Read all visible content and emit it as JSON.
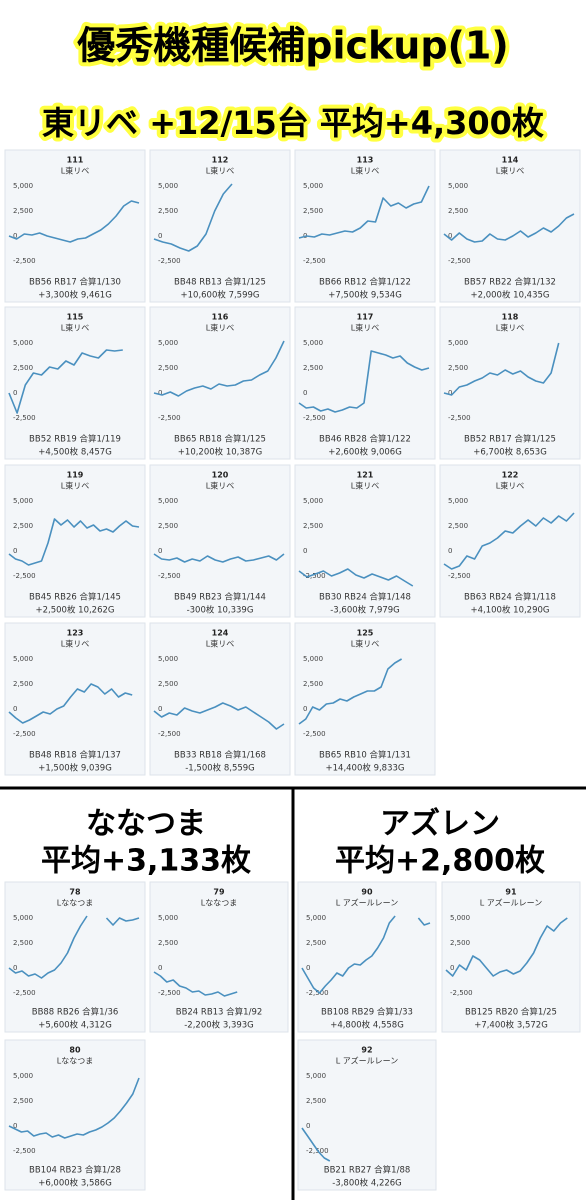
{
  "header": {
    "title": "優秀機種候補pickup(1)",
    "subtitle": "東リベ +12/15台 平均+4,300枚"
  },
  "sections": [
    {
      "title": "ななつま",
      "subtitle": "平均+3,133枚"
    },
    {
      "title": "アズレン",
      "subtitle": "平均+2,800枚"
    }
  ],
  "chart_data": [
    {
      "type": "line",
      "title": "111",
      "subtitle": "L東リベ",
      "annotations": [
        "BB56 RB17 合算1/130",
        "+3,300枚 9,461G"
      ],
      "values": [
        0,
        -300,
        200,
        100,
        300,
        0,
        -200,
        -400,
        -600,
        -300,
        -200,
        200,
        600,
        1200,
        2000,
        3000,
        3500,
        3300
      ],
      "ylim": [
        -3500,
        5800
      ],
      "yticks": [
        {
          "value": 5000,
          "label": "5,000"
        },
        {
          "value": 2500,
          "label": "2,500"
        },
        0,
        {
          "value": -2500,
          "label": "-2,500"
        }
      ],
      "color": "#4a90bf"
    },
    {
      "type": "line",
      "title": "112",
      "subtitle": "L東リベ",
      "annotations": [
        "BB48 RB13 合算1/125",
        "+10,600枚 7,599G"
      ],
      "values": [
        -300,
        -600,
        -800,
        -1200,
        -1500,
        -1000,
        200,
        2500,
        4200,
        5200,
        null,
        null,
        null,
        null,
        null,
        null
      ],
      "ylim": [
        -3500,
        5800
      ],
      "yticks": [
        {
          "value": 5000,
          "label": "5,000"
        },
        {
          "value": 2500,
          "label": "2,500"
        },
        0,
        {
          "value": -2500,
          "label": "-2,500"
        }
      ],
      "color": "#4a90bf"
    },
    {
      "type": "line",
      "title": "113",
      "subtitle": "L東リベ",
      "annotations": [
        "BB66 RB12 合算1/122",
        "+7,500枚 9,534G"
      ],
      "values": [
        -200,
        0,
        -100,
        200,
        100,
        300,
        500,
        400,
        800,
        1500,
        1400,
        3800,
        3000,
        3300,
        2800,
        3200,
        3400,
        5000
      ],
      "ylim": [
        -3500,
        5800
      ],
      "yticks": [
        {
          "value": 5000,
          "label": "5,000"
        },
        {
          "value": 2500,
          "label": "2,500"
        },
        0,
        {
          "value": -2500,
          "label": "-2,500"
        }
      ],
      "color": "#4a90bf"
    },
    {
      "type": "line",
      "title": "114",
      "subtitle": "L東リベ",
      "annotations": [
        "BB57 RB22 合算1/132",
        "+2,000枚 10,435G"
      ],
      "values": [
        200,
        -400,
        300,
        -300,
        -600,
        -500,
        200,
        -300,
        -400,
        0,
        500,
        -100,
        300,
        800,
        400,
        1000,
        1800,
        2200
      ],
      "ylim": [
        -3500,
        5800
      ],
      "yticks": [
        {
          "value": 5000,
          "label": "5,000"
        },
        {
          "value": 2500,
          "label": "2,500"
        },
        0,
        {
          "value": -2500,
          "label": "-2,500"
        }
      ],
      "color": "#4a90bf"
    },
    {
      "type": "line",
      "title": "115",
      "subtitle": "L東リベ",
      "annotations": [
        "BB52 RB19 合算1/119",
        "+4,500枚 8,457G"
      ],
      "values": [
        0,
        -2000,
        800,
        2000,
        1800,
        2600,
        2400,
        3200,
        2800,
        4000,
        3700,
        3500,
        4300,
        4200,
        4300,
        null,
        null
      ],
      "ylim": [
        -3500,
        5800
      ],
      "yticks": [
        {
          "value": 5000,
          "label": "5,000"
        },
        {
          "value": 2500,
          "label": "2,500"
        },
        0,
        {
          "value": -2500,
          "label": "-2,500"
        }
      ],
      "color": "#4a90bf"
    },
    {
      "type": "line",
      "title": "116",
      "subtitle": "L東リベ",
      "annotations": [
        "BB65 RB18 合算1/125",
        "+10,200枚 10,387G"
      ],
      "values": [
        0,
        -200,
        100,
        -300,
        200,
        500,
        700,
        400,
        900,
        700,
        800,
        1200,
        1300,
        1800,
        2200,
        3500,
        5200
      ],
      "ylim": [
        -3500,
        5800
      ],
      "yticks": [
        {
          "value": 5000,
          "label": "5,000"
        },
        {
          "value": 2500,
          "label": "2,500"
        },
        0,
        {
          "value": -2500,
          "label": "-2,500"
        }
      ],
      "color": "#4a90bf"
    },
    {
      "type": "line",
      "title": "117",
      "subtitle": "L東リベ",
      "annotations": [
        "BB46 RB28 合算1/122",
        "+2,600枚 9,006G"
      ],
      "values": [
        -1000,
        -1500,
        -1400,
        -1800,
        -1600,
        -1900,
        -1700,
        -1400,
        -1500,
        -1000,
        4200,
        4000,
        3800,
        3500,
        3700,
        3000,
        2600,
        2300,
        2500
      ],
      "ylim": [
        -3500,
        5800
      ],
      "yticks": [
        {
          "value": 5000,
          "label": "5,000"
        },
        {
          "value": 2500,
          "label": "2,500"
        },
        0,
        {
          "value": -2500,
          "label": "-2,500"
        }
      ],
      "color": "#4a90bf"
    },
    {
      "type": "line",
      "title": "118",
      "subtitle": "L東リベ",
      "annotations": [
        "BB52 RB17 合算1/125",
        "+6,700枚 8,653G"
      ],
      "values": [
        0,
        -200,
        600,
        800,
        1200,
        1500,
        2000,
        1800,
        2300,
        1900,
        2200,
        1600,
        1200,
        1000,
        2000,
        5000,
        null,
        null
      ],
      "ylim": [
        -3500,
        5800
      ],
      "yticks": [
        {
          "value": 5000,
          "label": "5,000"
        },
        {
          "value": 2500,
          "label": "2,500"
        },
        0,
        {
          "value": -2500,
          "label": "-2,500"
        }
      ],
      "color": "#4a90bf"
    },
    {
      "type": "line",
      "title": "119",
      "subtitle": "L東リベ",
      "annotations": [
        "BB45 RB26 合算1/145",
        "+2,500枚 10,262G"
      ],
      "values": [
        -300,
        -800,
        -1000,
        -1400,
        -1200,
        -1000,
        800,
        3200,
        2600,
        3100,
        2400,
        3000,
        2300,
        2600,
        2000,
        2200,
        1900,
        2500,
        3000,
        2500,
        2400
      ],
      "ylim": [
        -3500,
        5800
      ],
      "yticks": [
        {
          "value": 5000,
          "label": "5,000"
        },
        {
          "value": 2500,
          "label": "2,500"
        },
        0,
        {
          "value": -2500,
          "label": "-2,500"
        }
      ],
      "color": "#4a90bf"
    },
    {
      "type": "line",
      "title": "120",
      "subtitle": "L東リベ",
      "annotations": [
        "BB49 RB23 合算1/144",
        "-300枚 10,339G"
      ],
      "values": [
        -300,
        -800,
        -900,
        -700,
        -1100,
        -800,
        -1000,
        -500,
        -900,
        -1100,
        -800,
        -600,
        -1000,
        -900,
        -700,
        -500,
        -900,
        -300
      ],
      "ylim": [
        -3500,
        5800
      ],
      "yticks": [
        {
          "value": 5000,
          "label": "5,000"
        },
        {
          "value": 2500,
          "label": "2,500"
        },
        0,
        {
          "value": -2500,
          "label": "-2,500"
        }
      ],
      "color": "#4a90bf"
    },
    {
      "type": "line",
      "title": "121",
      "subtitle": "L東リベ",
      "annotations": [
        "BB30 RB24 合算1/148",
        "-3,600枚 7,979G"
      ],
      "values": [
        -2000,
        -2600,
        -2300,
        -2000,
        -2500,
        -2200,
        -1800,
        -2400,
        -2700,
        -2300,
        -2600,
        -2900,
        -2500,
        -3000,
        -3500,
        null,
        null
      ],
      "ylim": [
        -3500,
        5800
      ],
      "yticks": [
        {
          "value": 5000,
          "label": "5,000"
        },
        {
          "value": 2500,
          "label": "2,500"
        },
        0,
        {
          "value": -2500,
          "label": "-2,500"
        }
      ],
      "color": "#4a90bf"
    },
    {
      "type": "line",
      "title": "122",
      "subtitle": "L東リベ",
      "annotations": [
        "BB63 RB24 合算1/118",
        "+4,100枚 10,290G"
      ],
      "values": [
        -1300,
        -1800,
        -1500,
        -500,
        -800,
        500,
        800,
        1300,
        2000,
        1800,
        2500,
        3100,
        2500,
        3300,
        2800,
        3500,
        3000,
        3800
      ],
      "ylim": [
        -3500,
        5800
      ],
      "yticks": [
        {
          "value": 5000,
          "label": "5,000"
        },
        {
          "value": 2500,
          "label": "2,500"
        },
        0,
        {
          "value": -2500,
          "label": "-2,500"
        }
      ],
      "color": "#4a90bf"
    },
    {
      "type": "line",
      "title": "123",
      "subtitle": "L東リベ",
      "annotations": [
        "BB48 RB18 合算1/137",
        "+1,500枚 9,039G"
      ],
      "values": [
        -300,
        -900,
        -1400,
        -1100,
        -700,
        -300,
        -500,
        0,
        300,
        1200,
        2000,
        1700,
        2500,
        2200,
        1500,
        2000,
        1200,
        1600,
        1400,
        null
      ],
      "ylim": [
        -3500,
        5800
      ],
      "yticks": [
        {
          "value": 5000,
          "label": "5,000"
        },
        {
          "value": 2500,
          "label": "2,500"
        },
        0,
        {
          "value": -2500,
          "label": "-2,500"
        }
      ],
      "color": "#4a90bf"
    },
    {
      "type": "line",
      "title": "124",
      "subtitle": "L東リベ",
      "annotations": [
        "BB33 RB18 合算1/168",
        "-1,500枚 8,559G"
      ],
      "values": [
        -200,
        -800,
        -400,
        -600,
        100,
        -200,
        -400,
        -100,
        200,
        600,
        300,
        -100,
        200,
        -300,
        -800,
        -1300,
        -2000,
        -1500
      ],
      "ylim": [
        -3500,
        5800
      ],
      "yticks": [
        {
          "value": 5000,
          "label": "5,000"
        },
        {
          "value": 2500,
          "label": "2,500"
        },
        0,
        {
          "value": -2500,
          "label": "-2,500"
        }
      ],
      "color": "#4a90bf"
    },
    {
      "type": "line",
      "title": "125",
      "subtitle": "L東リベ",
      "annotations": [
        "BB65 RB10 合算1/131",
        "+14,400枚 9,833G"
      ],
      "values": [
        -1500,
        -1000,
        200,
        -100,
        500,
        600,
        1000,
        800,
        1200,
        1500,
        1800,
        1800,
        2200,
        4000,
        4600,
        5000,
        null,
        null,
        null,
        null
      ],
      "ylim": [
        -3500,
        5800
      ],
      "yticks": [
        {
          "value": 5000,
          "label": "5,000"
        },
        {
          "value": 2500,
          "label": "2,500"
        },
        0,
        {
          "value": -2500,
          "label": "-2,500"
        }
      ],
      "color": "#4a90bf"
    },
    {
      "type": "line",
      "title": "78",
      "subtitle": "Lななつま",
      "annotations": [
        "BB88 RB26 合算1/36",
        "+5,600枚 4,312G"
      ],
      "values": [
        0,
        -500,
        -300,
        -800,
        -600,
        -1000,
        -500,
        -200,
        500,
        1500,
        3000,
        4200,
        5200,
        null,
        null,
        5000,
        4300,
        5000,
        4700,
        4800,
        5000
      ],
      "ylim": [
        -3500,
        5800
      ],
      "yticks": [
        {
          "value": 5000,
          "label": "5,000"
        },
        {
          "value": 2500,
          "label": "2,500"
        },
        0,
        {
          "value": -2500,
          "label": "-2,500"
        }
      ],
      "color": "#4a90bf"
    },
    {
      "type": "line",
      "title": "79",
      "subtitle": "Lななつま",
      "annotations": [
        "BB24 RB13 合算1/92",
        "-2,200枚 3,393G"
      ],
      "values": [
        -400,
        -800,
        -1400,
        -1200,
        -1800,
        -2000,
        -2400,
        -2300,
        -2700,
        -2600,
        -2400,
        -2800,
        -2600,
        -2400,
        null,
        null,
        null,
        null,
        null,
        null,
        null
      ],
      "ylim": [
        -3500,
        5800
      ],
      "yticks": [
        {
          "value": 5000,
          "label": "5,000"
        },
        {
          "value": 2500,
          "label": "2,500"
        },
        0,
        {
          "value": -2500,
          "label": "-2,500"
        }
      ],
      "color": "#4a90bf"
    },
    {
      "type": "line",
      "title": "80",
      "subtitle": "Lななつま",
      "annotations": [
        "BB104 RB23 合算1/28",
        "+6,000枚 3,586G"
      ],
      "values": [
        0,
        -300,
        -600,
        -500,
        -1000,
        -800,
        -700,
        -1100,
        -900,
        -1200,
        -1000,
        -800,
        -900,
        -600,
        -400,
        -100,
        300,
        800,
        1500,
        2300,
        3200,
        4800
      ],
      "ylim": [
        -3500,
        5800
      ],
      "yticks": [
        {
          "value": 5000,
          "label": "5,000"
        },
        {
          "value": 2500,
          "label": "2,500"
        },
        0,
        {
          "value": -2500,
          "label": "-2,500"
        }
      ],
      "color": "#4a90bf"
    },
    {
      "type": "line",
      "title": "90",
      "subtitle": "L アズールレーン",
      "annotations": [
        "BB108 RB29 合算1/33",
        "+4,800枚 4,558G"
      ],
      "values": [
        0,
        -1000,
        -2000,
        -2500,
        -1800,
        -1200,
        -500,
        -800,
        0,
        400,
        300,
        800,
        1200,
        2000,
        3000,
        4500,
        5200,
        null,
        null,
        null,
        5000,
        4300,
        4500
      ],
      "ylim": [
        -3500,
        5800
      ],
      "yticks": [
        {
          "value": 5000,
          "label": "5,000"
        },
        {
          "value": 2500,
          "label": "2,500"
        },
        0,
        {
          "value": -2500,
          "label": "-2,500"
        }
      ],
      "color": "#4a90bf"
    },
    {
      "type": "line",
      "title": "91",
      "subtitle": "L アズールレーン",
      "annotations": [
        "BB125 RB20 合算1/25",
        "+7,400枚 3,572G"
      ],
      "values": [
        -200,
        -800,
        300,
        -200,
        1200,
        800,
        0,
        -800,
        -400,
        -200,
        -600,
        -300,
        500,
        1500,
        3000,
        4200,
        3700,
        4500,
        5000,
        null
      ],
      "ylim": [
        -3500,
        5800
      ],
      "yticks": [
        {
          "value": 5000,
          "label": "5,000"
        },
        {
          "value": 2500,
          "label": "2,500"
        },
        0,
        {
          "value": -2500,
          "label": "-2,500"
        }
      ],
      "color": "#4a90bf"
    },
    {
      "type": "line",
      "title": "92",
      "subtitle": "L アズールレーン",
      "annotations": [
        "BB21 RB27 合算1/88",
        "-3,800枚 4,226G"
      ],
      "values": [
        -200,
        -1000,
        -1800,
        -2600,
        -3200,
        -3500,
        null,
        null,
        null,
        null,
        null,
        null,
        null,
        null,
        null,
        null,
        null,
        null,
        null,
        null,
        null,
        null,
        null,
        null
      ],
      "ylim": [
        -3500,
        5800
      ],
      "yticks": [
        {
          "value": 5000,
          "label": "5,000"
        },
        {
          "value": 2500,
          "label": "2,500"
        },
        0,
        {
          "value": -2500,
          "label": "-2,500"
        }
      ],
      "color": "#4a90bf"
    }
  ]
}
